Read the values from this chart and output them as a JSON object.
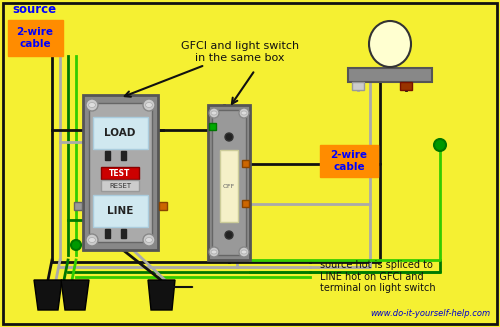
{
  "bg_color": "#f5f032",
  "border_color": "#000000",
  "source_color": "#0000ff",
  "cable_bg": "#ff8c00",
  "cable_text_color": "#0000ff",
  "annotation1_line1": "GFCI and light switch",
  "annotation1_line2": "in the same box",
  "annotation2": "source hot is spliced to\nLINE hot on GFCI and\nterminal on light switch",
  "website": "www.do-it-yourself-help.com",
  "wire_black": "#111111",
  "wire_white": "#aaaaaa",
  "wire_green_dark": "#007700",
  "wire_green_bright": "#33cc00",
  "gfci_outer": "#888888",
  "gfci_inner": "#aaaaaa",
  "gfci_panel": "#d0e8f0",
  "sw_outer": "#888888",
  "sw_inner": "#999999",
  "screw_face": "#cccccc",
  "copper_screw": "#cc6600",
  "green_screw": "#007700",
  "test_red": "#cc0000",
  "reset_gray": "#cccccc",
  "switch_paddle": "#f5f0c8",
  "lamp_base": "#888888",
  "lamp_bulb_fill": "#ffffd0",
  "lamp_bulb_edge": "#333333",
  "lamp_terminal_white": "#cccccc",
  "lamp_terminal_copper": "#993300",
  "dot_green": "#009900"
}
